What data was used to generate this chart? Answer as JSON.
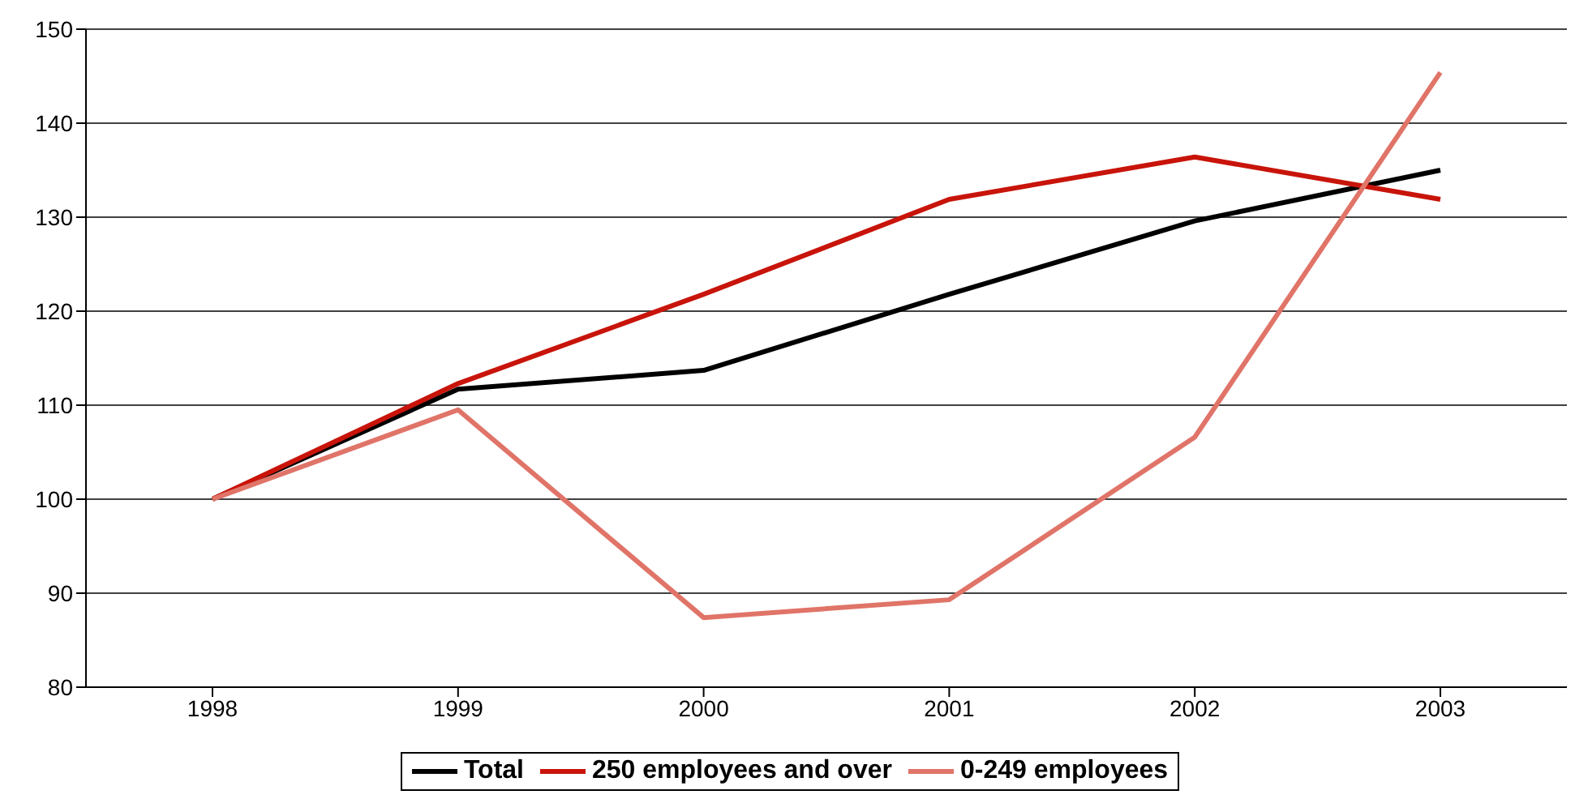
{
  "chart_data": {
    "type": "line",
    "categories": [
      "1998",
      "1999",
      "2000",
      "2001",
      "2002",
      "2003"
    ],
    "series": [
      {
        "name": "Total",
        "color": "#000000",
        "values": [
          100,
          111.7,
          113.7,
          121.8,
          129.6,
          135
        ]
      },
      {
        "name": "250 employees and over",
        "color": "#c8140a",
        "values": [
          100,
          112.3,
          121.8,
          131.9,
          136.4,
          131.9
        ]
      },
      {
        "name": "0-249 employees",
        "color": "#e07468",
        "values": [
          100,
          109.5,
          87.4,
          89.3,
          106.6,
          145.4
        ]
      }
    ],
    "ylim": [
      80,
      150
    ],
    "yticks": [
      80,
      90,
      100,
      110,
      120,
      130,
      140,
      150
    ],
    "grid": "y",
    "legend": "bottom",
    "marker": "none",
    "line_style": "solid"
  }
}
